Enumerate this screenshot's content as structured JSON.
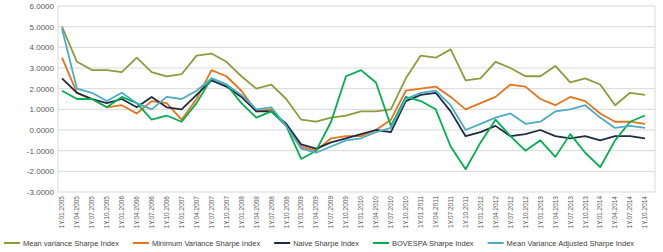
{
  "chart_data": {
    "type": "line",
    "categories": [
      "1Y.01.2005",
      "1Y.04.2005",
      "1Y.07.2005",
      "1Y.10.2005",
      "1Y.01.2006",
      "1Y.04.2006",
      "1Y.07.2006",
      "1Y.10.2006",
      "1Y.01.2007",
      "1Y.04.2007",
      "1Y.07.2007",
      "1Y.10.2007",
      "1Y.01.2008",
      "1Y.04.2008",
      "1Y.07.2008",
      "1Y.10.2008",
      "1Y.01.2009",
      "1Y.04.2009",
      "1Y.07.2009",
      "1Y.10.2009",
      "1Y.01.2010",
      "1Y.04.2010",
      "1Y.07.2010",
      "1Y.10.2010",
      "1Y.01.2011",
      "1Y.04.2011",
      "1Y.07.2011",
      "1Y.10.2011",
      "1Y.01.2012",
      "1Y.04.2012",
      "1Y.07.2012",
      "1Y.10.2012",
      "1Y.01.2013",
      "1Y.04.2013",
      "1Y.07.2013",
      "1Y.10.2013",
      "1Y.01.2014",
      "1Y.04.2014",
      "1Y.07.2014",
      "1Y.10.2014"
    ],
    "series": [
      {
        "name": "Mean variance Sharpe Index",
        "color": "#8c9c3c",
        "values": [
          5.0,
          3.3,
          2.9,
          2.9,
          2.8,
          3.5,
          2.8,
          2.6,
          2.7,
          3.6,
          3.7,
          3.3,
          2.6,
          2.0,
          2.2,
          1.5,
          0.5,
          0.4,
          0.6,
          0.7,
          0.9,
          0.9,
          1.0,
          2.5,
          3.6,
          3.5,
          3.9,
          2.4,
          2.5,
          3.3,
          3.0,
          2.6,
          2.6,
          3.1,
          2.3,
          2.5,
          2.2,
          1.2,
          1.8,
          1.7
        ]
      },
      {
        "name": "Minimum Variance Sharpe Index",
        "color": "#e8731a",
        "values": [
          3.5,
          1.8,
          1.5,
          1.1,
          1.2,
          0.8,
          1.4,
          1.3,
          0.5,
          1.5,
          2.9,
          2.6,
          1.9,
          0.9,
          1.0,
          0.2,
          -0.8,
          -1.0,
          -0.4,
          -0.3,
          -0.3,
          0.0,
          0.5,
          1.9,
          2.0,
          2.1,
          1.6,
          1.0,
          1.3,
          1.6,
          2.2,
          2.1,
          1.5,
          1.2,
          1.6,
          1.4,
          0.8,
          0.4,
          0.4,
          0.3
        ]
      },
      {
        "name": "Naive Sharpe Index",
        "color": "#1f2a44",
        "values": [
          2.5,
          1.8,
          1.5,
          1.3,
          1.5,
          1.1,
          1.6,
          1.1,
          1.0,
          1.7,
          2.4,
          2.1,
          1.6,
          0.9,
          0.9,
          0.3,
          -0.7,
          -0.9,
          -0.6,
          -0.4,
          -0.2,
          0.0,
          -0.1,
          1.4,
          1.7,
          1.8,
          0.9,
          -0.3,
          -0.1,
          0.2,
          -0.3,
          -0.2,
          0.0,
          -0.3,
          -0.4,
          -0.3,
          -0.5,
          -0.3,
          -0.3,
          -0.4
        ]
      },
      {
        "name": "BOVESPA Sharpe Index",
        "color": "#00b050",
        "values": [
          1.9,
          1.5,
          1.5,
          1.1,
          1.6,
          1.3,
          0.5,
          0.7,
          0.4,
          1.3,
          2.5,
          2.2,
          1.3,
          0.6,
          0.9,
          0.2,
          -1.4,
          -1.0,
          0.4,
          2.6,
          2.9,
          2.3,
          0.2,
          1.6,
          1.4,
          1.0,
          -0.8,
          -1.9,
          -0.6,
          0.5,
          -0.3,
          -1.0,
          -0.5,
          -1.3,
          -0.2,
          -1.1,
          -1.8,
          -0.5,
          0.4,
          0.7
        ]
      },
      {
        "name": "Mean Variance Adjusted Sharpe Index",
        "color": "#4bacc6",
        "values": [
          4.9,
          2.0,
          1.8,
          1.4,
          1.8,
          1.3,
          1.0,
          1.6,
          1.5,
          1.9,
          2.5,
          2.2,
          1.7,
          1.0,
          1.1,
          0.2,
          -0.9,
          -1.1,
          -0.8,
          -0.5,
          -0.4,
          -0.1,
          0.1,
          1.5,
          1.8,
          1.9,
          1.2,
          0.0,
          0.3,
          0.6,
          0.8,
          0.3,
          0.4,
          0.9,
          1.0,
          1.2,
          0.6,
          0.1,
          0.2,
          0.1
        ]
      }
    ],
    "ylim": [
      -3,
      6
    ],
    "yticks": [
      {
        "value": -3,
        "label": "-3.0000"
      },
      {
        "value": -2,
        "label": "-2.0000"
      },
      {
        "value": -1,
        "label": "-1.0000"
      },
      {
        "value": 0,
        "label": "0.0000"
      },
      {
        "value": 1,
        "label": "1.0000"
      },
      {
        "value": 2,
        "label": "2.0000"
      },
      {
        "value": 3,
        "label": "3.0000"
      },
      {
        "value": 4,
        "label": "4.0000"
      },
      {
        "value": 5,
        "label": "5.0000"
      },
      {
        "value": 6,
        "label": "6.0000"
      }
    ],
    "grid": true,
    "legend": "bottom"
  }
}
